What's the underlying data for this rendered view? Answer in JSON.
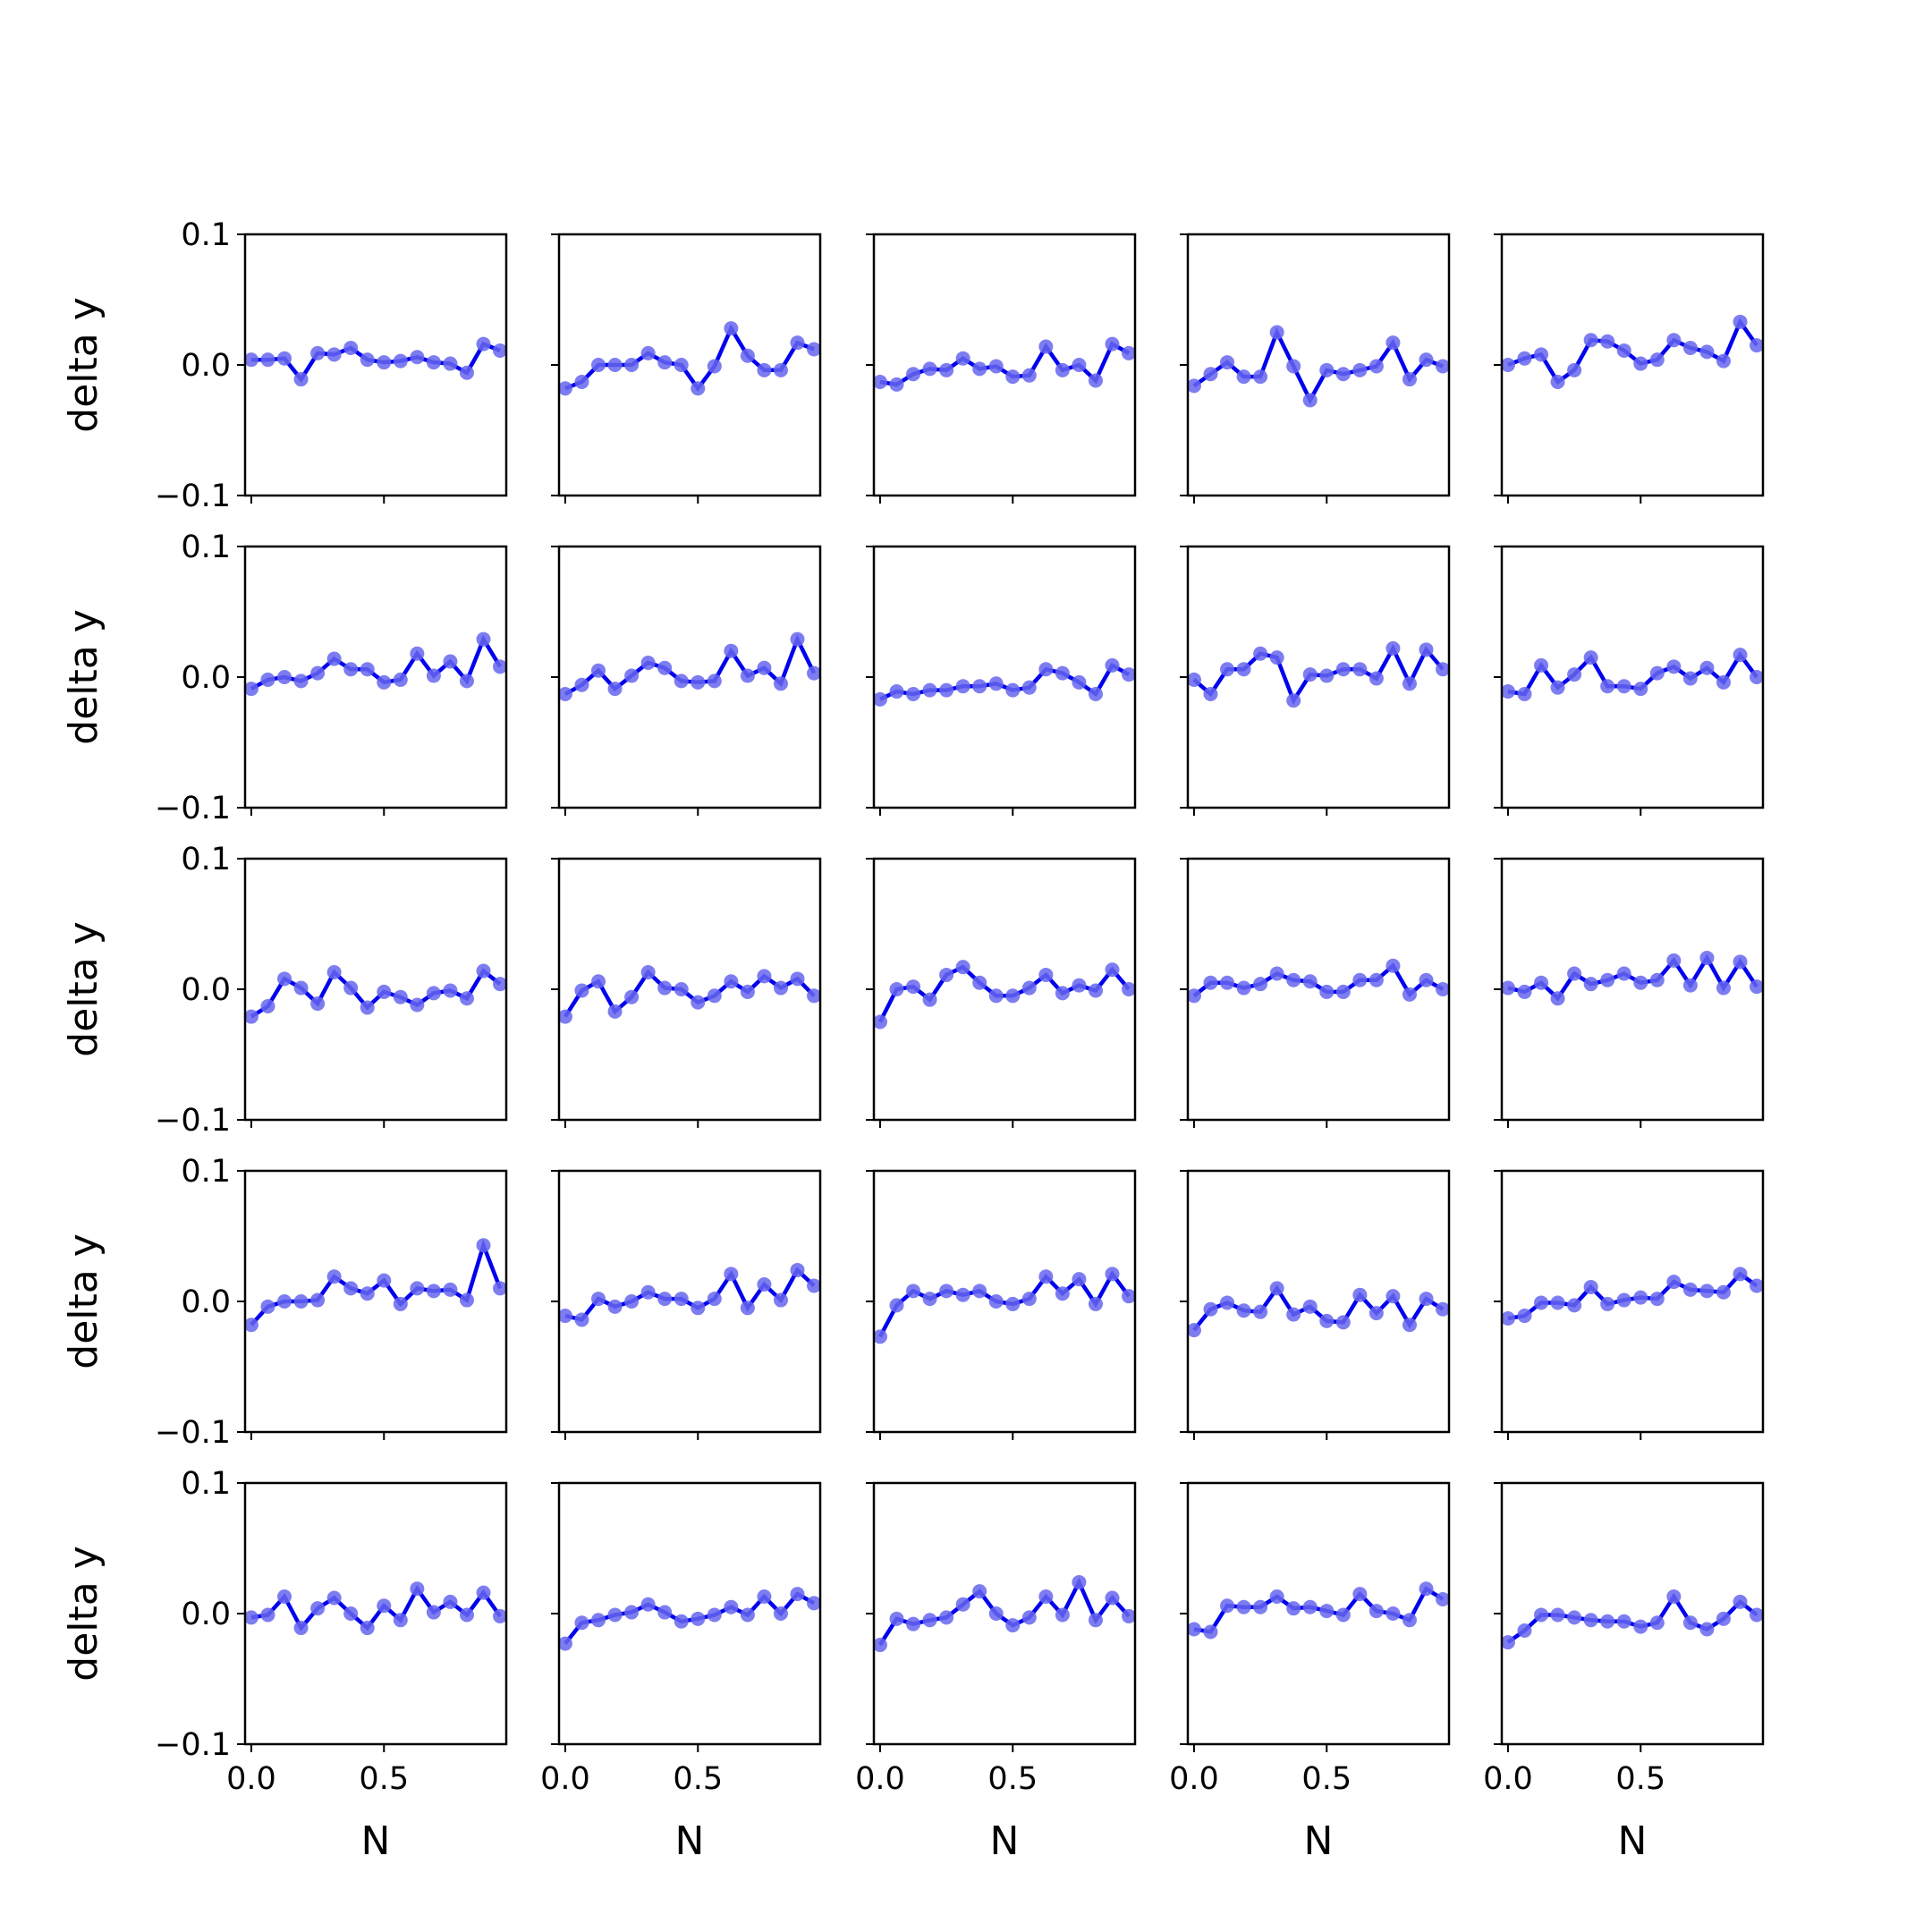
{
  "chart_data": {
    "type": "line",
    "layout": {
      "rows": 5,
      "cols": 5
    },
    "xlabel": "N",
    "ylabel": "delta y",
    "xlim": [
      -0.0234,
      0.9609
    ],
    "ylim": [
      -0.1,
      0.1
    ],
    "xticks": [
      0.0,
      0.5
    ],
    "xtick_labels": [
      "0.0",
      "0.5"
    ],
    "yticks": [
      -0.1,
      0.0,
      0.1
    ],
    "ytick_labels": [
      "−0.1",
      "0.0",
      "0.1"
    ],
    "x": [
      0,
      0.0625,
      0.125,
      0.1875,
      0.25,
      0.3125,
      0.375,
      0.4375,
      0.5,
      0.5625,
      0.625,
      0.6875,
      0.75,
      0.8125,
      0.875,
      0.9375
    ],
    "line_color": "#0000ee",
    "marker_color": "#6666ee",
    "panels": [
      {
        "values": [
          0.004,
          0.004,
          0.005,
          -0.011,
          0.009,
          0.008,
          0.013,
          0.004,
          0.002,
          0.003,
          0.006,
          0.002,
          0.001,
          -0.006,
          0.016,
          0.011
        ]
      },
      {
        "values": [
          -0.018,
          -0.013,
          0.0,
          0.0,
          0.0,
          0.009,
          0.002,
          0.0,
          -0.018,
          -0.001,
          0.028,
          0.007,
          -0.004,
          -0.004,
          0.017,
          0.012
        ]
      },
      {
        "values": [
          -0.013,
          -0.015,
          -0.007,
          -0.003,
          -0.004,
          0.005,
          -0.003,
          -0.001,
          -0.009,
          -0.008,
          0.014,
          -0.004,
          0.0,
          -0.012,
          0.016,
          0.009
        ]
      },
      {
        "values": [
          -0.016,
          -0.007,
          0.002,
          -0.009,
          -0.009,
          0.025,
          -0.001,
          -0.027,
          -0.004,
          -0.007,
          -0.004,
          -0.001,
          0.017,
          -0.011,
          0.004,
          -0.001
        ]
      },
      {
        "values": [
          0.0,
          0.005,
          0.008,
          -0.013,
          -0.004,
          0.019,
          0.018,
          0.011,
          0.001,
          0.004,
          0.019,
          0.013,
          0.01,
          0.003,
          0.033,
          0.015
        ]
      }
    ]
  }
}
